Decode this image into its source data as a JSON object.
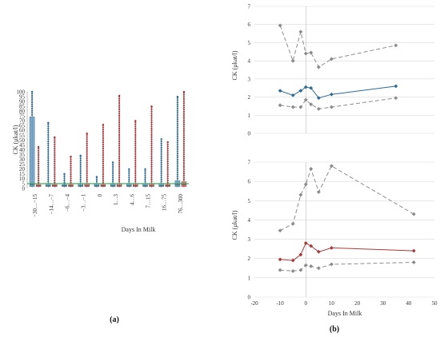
{
  "panels": {
    "a_label": "(a)",
    "b_label": "(b)"
  },
  "colors": {
    "blue": "#2e6a96",
    "red": "#a8393b",
    "gray": "#8c8c8c",
    "box_blue": "#5b90b8",
    "box_red": "#c06060",
    "threshold": "#2ea44f",
    "grid": "#d9d9d9"
  },
  "chart_data": [
    {
      "id": "panel-a",
      "type": "box",
      "xlabel": "Days In Milk",
      "ylabel": "CK (μkat/l)",
      "ylim": [
        0,
        100
      ],
      "yticks": [
        0,
        5,
        10,
        15,
        20,
        25,
        30,
        35,
        40,
        45,
        50,
        55,
        60,
        65,
        70,
        75,
        80,
        85,
        90,
        95,
        100
      ],
      "threshold": 5,
      "categories": [
        "−30…−15",
        "−14…−7",
        "−6…−4",
        "−3…−1",
        "0",
        "1…3",
        "4…6",
        "7…15",
        "16…75",
        "76…300"
      ],
      "series": [
        {
          "color": "blue",
          "box": [
            [
              1,
              2,
              4,
              74,
              100
            ],
            [
              1,
              2,
              3,
              5,
              68
            ],
            [
              1,
              2,
              3,
              4,
              15
            ],
            [
              1,
              2,
              3,
              5,
              34
            ],
            [
              1,
              2,
              3,
              5,
              12
            ],
            [
              1,
              2,
              3,
              5,
              27
            ],
            [
              1,
              2,
              3,
              5,
              20
            ],
            [
              1,
              2,
              3,
              5,
              20
            ],
            [
              1,
              2,
              3,
              5,
              51
            ],
            [
              1,
              2,
              4,
              8,
              95
            ]
          ],
          "max_outlier": [
            100,
            68,
            15,
            34,
            12,
            27,
            20,
            20,
            51,
            95
          ]
        },
        {
          "color": "red",
          "box": [
            [
              1,
              2,
              3,
              4,
              43
            ],
            [
              1,
              2,
              3,
              4,
              53
            ],
            [
              1,
              2,
              3,
              4,
              33
            ],
            [
              1,
              2,
              3,
              5,
              57
            ],
            [
              1,
              2,
              3,
              4,
              66
            ],
            [
              1,
              2,
              3,
              5,
              96
            ],
            [
              1,
              2,
              3,
              5,
              70
            ],
            [
              1,
              2,
              3,
              5,
              85
            ],
            [
              1,
              2,
              3,
              4,
              48
            ],
            [
              1,
              2,
              4,
              7,
              100
            ]
          ],
          "max_outlier": [
            43,
            53,
            33,
            57,
            66,
            96,
            70,
            85,
            48,
            100
          ]
        }
      ]
    },
    {
      "id": "panel-b-top",
      "type": "line",
      "ylabel": "CK (μkat/l)",
      "ylim": [
        0,
        7
      ],
      "yticks": [
        0,
        1,
        2,
        3,
        4,
        5,
        6,
        7
      ],
      "grid": "horizontal",
      "series": [
        {
          "color": "gray",
          "dash": true,
          "x": [
            -10,
            -5,
            -2,
            0,
            2,
            5,
            10,
            35
          ],
          "y": [
            5.95,
            4.0,
            5.6,
            4.4,
            4.45,
            3.65,
            4.1,
            4.85
          ]
        },
        {
          "color": "blue",
          "dash": false,
          "x": [
            -10,
            -5,
            -2,
            0,
            2,
            5,
            10,
            35
          ],
          "y": [
            2.35,
            2.1,
            2.35,
            2.55,
            2.5,
            1.95,
            2.15,
            2.6
          ]
        },
        {
          "color": "gray",
          "dash": true,
          "x": [
            -10,
            -5,
            -2,
            0,
            2,
            5,
            10,
            35
          ],
          "y": [
            1.55,
            1.45,
            1.45,
            1.85,
            1.6,
            1.35,
            1.45,
            1.95
          ]
        }
      ]
    },
    {
      "id": "panel-b-bottom",
      "type": "line",
      "xlabel": "Days In Milk",
      "ylabel": "CK (μkat/l)",
      "xlim": [
        -20,
        50
      ],
      "xticks": [
        -20,
        -10,
        0,
        10,
        20,
        30,
        40,
        50
      ],
      "ylim": [
        0,
        7
      ],
      "yticks": [
        0,
        1,
        2,
        3,
        4,
        5,
        6,
        7
      ],
      "grid": "horizontal",
      "series": [
        {
          "color": "gray",
          "dash": true,
          "x": [
            -10,
            -5,
            -2,
            0,
            2,
            5,
            10,
            42
          ],
          "y": [
            3.45,
            3.8,
            5.3,
            5.85,
            6.65,
            5.45,
            6.8,
            4.3
          ]
        },
        {
          "color": "red",
          "dash": false,
          "x": [
            -10,
            -5,
            -2,
            0,
            2,
            5,
            10,
            42
          ],
          "y": [
            1.95,
            1.9,
            2.2,
            2.8,
            2.65,
            2.35,
            2.55,
            2.4
          ]
        },
        {
          "color": "gray",
          "dash": true,
          "x": [
            -10,
            -5,
            -2,
            0,
            2,
            5,
            10,
            42
          ],
          "y": [
            1.4,
            1.35,
            1.4,
            1.65,
            1.6,
            1.5,
            1.7,
            1.8
          ]
        }
      ]
    }
  ]
}
